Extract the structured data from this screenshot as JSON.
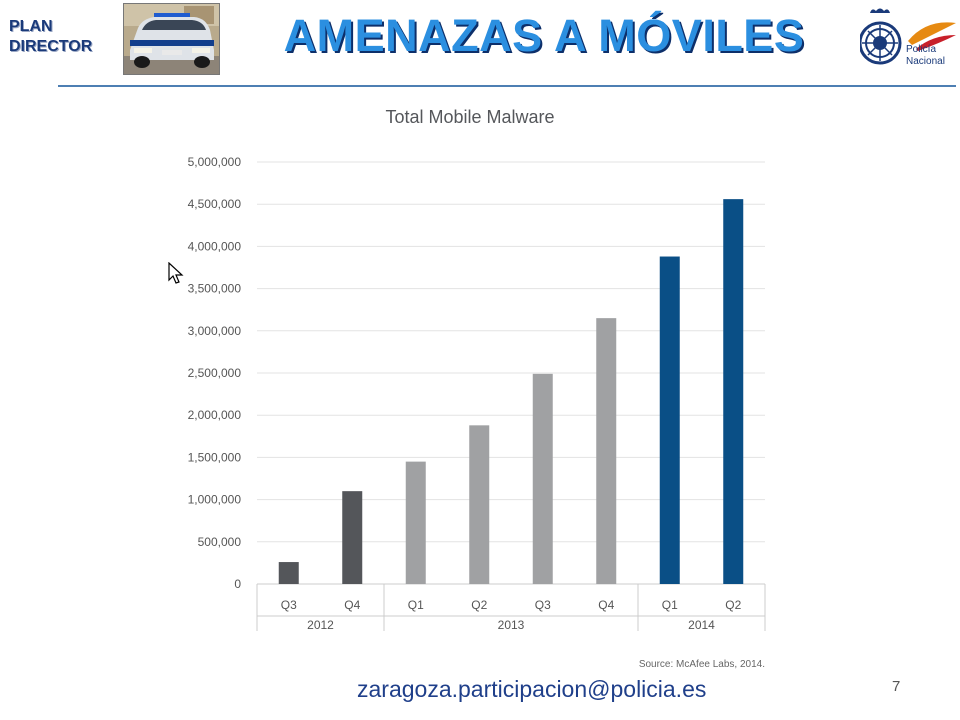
{
  "header": {
    "brand_line1": "PLAN",
    "brand_line2": "DIRECTOR",
    "title": "AMENAZAS A MÓVILES",
    "logo_text": "Policía Nacional",
    "colors": {
      "title": "#2b8fe0",
      "title_shadow": "#0d2f6a",
      "brand": "#1a3a7a",
      "rule": "#4e7fb3"
    }
  },
  "chart_data": {
    "type": "bar",
    "title": "Total Mobile Malware",
    "categories": [
      "Q3",
      "Q4",
      "Q1",
      "Q2",
      "Q3",
      "Q4",
      "Q1",
      "Q2"
    ],
    "groups": [
      {
        "label": "2012",
        "count": 2
      },
      {
        "label": "2013",
        "count": 4
      },
      {
        "label": "2014",
        "count": 2
      }
    ],
    "values": [
      260000,
      1100000,
      1450000,
      1880000,
      2490000,
      3150000,
      3880000,
      4560000
    ],
    "bar_colors": [
      "#54565a",
      "#54565a",
      "#a0a1a3",
      "#a0a1a3",
      "#a0a1a3",
      "#a0a1a3",
      "#0a4f86",
      "#0a4f86"
    ],
    "ylim": [
      0,
      5000000
    ],
    "yticks": [
      0,
      500000,
      1000000,
      1500000,
      2000000,
      2500000,
      3000000,
      3500000,
      4000000,
      4500000,
      5000000
    ],
    "ytick_labels": [
      "0",
      "500,000",
      "1,000,000",
      "1,500,000",
      "2,000,000",
      "2,500,000",
      "3,000,000",
      "3,500,000",
      "4,000,000",
      "4,500,000",
      "5,000,000"
    ],
    "grid": true,
    "source": "Source: McAfee Labs, 2014."
  },
  "footer": {
    "email": "zaragoza.participacion@policia.es",
    "page_number": "7",
    "line_color": "#4e7fb3"
  }
}
